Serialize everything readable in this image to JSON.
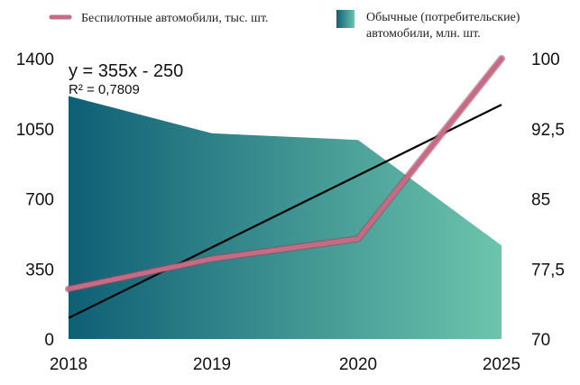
{
  "chart_data": {
    "type": "area",
    "x": [
      "2018",
      "2019",
      "2020",
      "2025"
    ],
    "series": [
      {
        "name": "Обычные (потребительские) автомобили, млн. шт.",
        "kind": "area",
        "axis": "right",
        "values": [
          96.0,
          92.0,
          91.3,
          80.0
        ]
      },
      {
        "name": "Беспилотные автомобили, тыс. шт.",
        "kind": "line",
        "axis": "left",
        "values": [
          250,
          400,
          500,
          1400
        ]
      }
    ],
    "trendline": {
      "equation": "y = 355x - 250",
      "r_squared": "R² = 0,7809",
      "y_start": 105,
      "y_end": 1170
    },
    "y_left": {
      "ylim": [
        0,
        1400
      ],
      "ticks": [
        "0",
        "350",
        "700",
        "1050",
        "1400"
      ],
      "values": [
        0,
        350,
        700,
        1050,
        1400
      ]
    },
    "y_right": {
      "ylim": [
        70,
        100
      ],
      "ticks": [
        "70",
        "77,5",
        "85",
        "92,5",
        "100"
      ],
      "values": [
        70,
        77.5,
        85,
        92.5,
        100
      ]
    },
    "x_ticks": [
      "2018",
      "2019",
      "2020",
      "2025"
    ],
    "legend_position": "top",
    "colors": {
      "line": "#c76a84",
      "line_shadow": "#9c4a63",
      "area_start": "#0f5f75",
      "area_end": "#6cc4ac",
      "trend": "#000000"
    }
  }
}
